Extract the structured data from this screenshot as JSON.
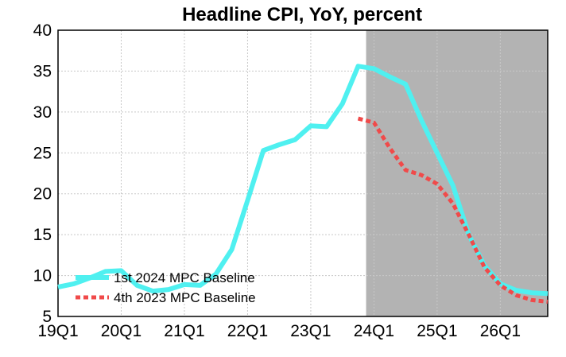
{
  "chart_data": {
    "type": "line",
    "title": "Headline CPI, YoY, percent",
    "xlabel": "",
    "ylabel": "",
    "ylim": [
      5,
      40
    ],
    "xlim": [
      "2019Q1",
      "2026Q4"
    ],
    "grid": true,
    "yticks": [
      "40",
      "35",
      "30",
      "25",
      "20",
      "15",
      "10",
      "5"
    ],
    "xticks": [
      "19Q1",
      "20Q1",
      "21Q1",
      "22Q1",
      "23Q1",
      "24Q1",
      "25Q1",
      "26Q1"
    ],
    "shaded_region": {
      "from": "2023Q4",
      "to": "2026Q4",
      "color": "#b3b3b3"
    },
    "legend_position": "bottom-left",
    "series": [
      {
        "name": "1st 2024 MPC Baseline",
        "color": "#4ff0f0",
        "style": "solid",
        "x": [
          "2019Q1",
          "2019Q2",
          "2019Q3",
          "2019Q4",
          "2020Q1",
          "2020Q2",
          "2020Q3",
          "2020Q4",
          "2021Q1",
          "2021Q2",
          "2021Q3",
          "2021Q4",
          "2022Q1",
          "2022Q2",
          "2022Q3",
          "2022Q4",
          "2023Q1",
          "2023Q2",
          "2023Q3",
          "2023Q4",
          "2024Q1",
          "2024Q2",
          "2024Q3",
          "2024Q4",
          "2025Q1",
          "2025Q2",
          "2025Q3",
          "2025Q4",
          "2026Q1",
          "2026Q2",
          "2026Q3",
          "2026Q4"
        ],
        "values": [
          8.6,
          9.0,
          9.7,
          10.5,
          10.6,
          8.8,
          8.1,
          8.3,
          8.9,
          8.8,
          10.2,
          13.2,
          19.2,
          25.3,
          26.0,
          26.6,
          28.3,
          28.2,
          31.0,
          35.6,
          35.3,
          34.3,
          33.4,
          29.0,
          25.0,
          21.0,
          15.0,
          11.2,
          9.0,
          8.2,
          7.9,
          7.8
        ]
      },
      {
        "name": "4th 2023 MPC Baseline",
        "color": "#f04a4a",
        "style": "dashed",
        "x": [
          "2023Q4",
          "2024Q1",
          "2024Q2",
          "2024Q3",
          "2024Q4",
          "2025Q1",
          "2025Q2",
          "2025Q3",
          "2025Q4",
          "2026Q1",
          "2026Q2",
          "2026Q3",
          "2026Q4"
        ],
        "values": [
          29.2,
          28.7,
          25.6,
          22.9,
          22.3,
          21.2,
          18.8,
          15.0,
          11.0,
          8.8,
          7.6,
          7.0,
          6.8
        ]
      }
    ]
  }
}
